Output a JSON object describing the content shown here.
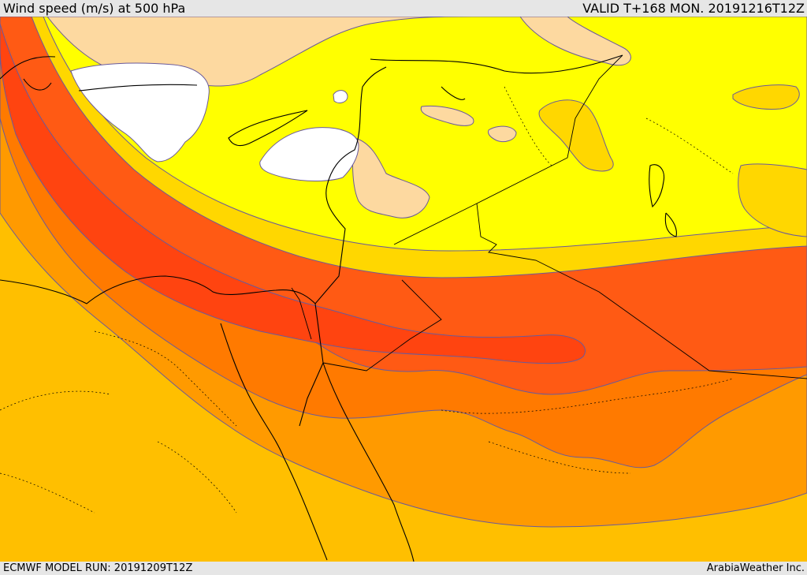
{
  "header": {
    "title": "Wind speed (m/s) at 500 hPa",
    "valid": "VALID T+168 MON. 20191216T12Z"
  },
  "footer": {
    "model_run": "ECMWF MODEL RUN: 20191209T12Z",
    "credit": "ArabiaWeather Inc."
  },
  "colors": {
    "band_calm": "#ffffff",
    "band_light": "#fdd9a0",
    "band_low": "#ffff00",
    "band_moderate": "#ffd700",
    "band_fresh": "#ffbf00",
    "band_strong": "#ff9a00",
    "band_very_strong": "#ff7a00",
    "band_jet": "#ff5a14",
    "band_jet_core": "#ff4410",
    "contour": "#6a5a9a",
    "border": "#000000"
  }
}
